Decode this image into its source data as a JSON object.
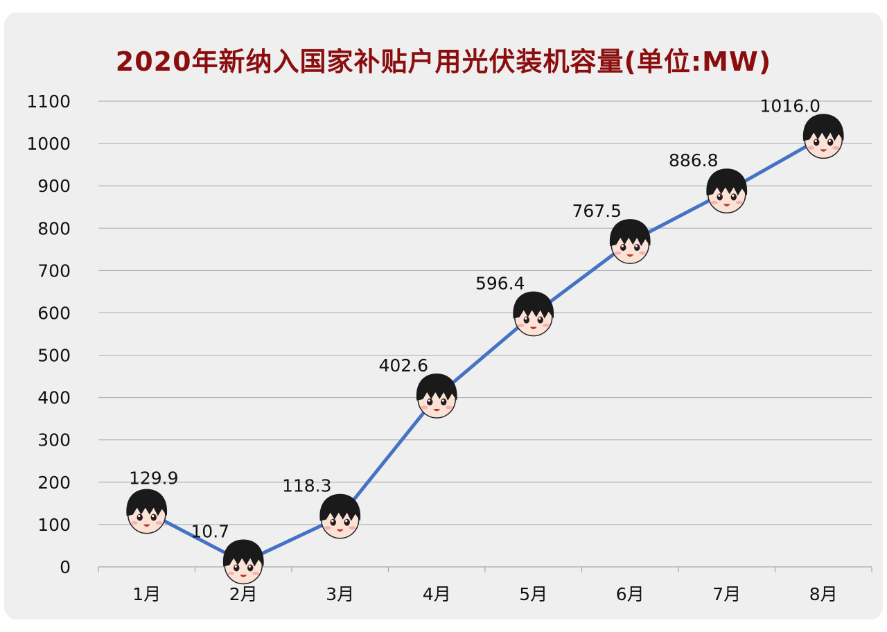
{
  "chart_data": {
    "type": "line",
    "title": "2020年新纳入国家补贴户用光伏装机容量(单位:MW)",
    "categories": [
      "1月",
      "2月",
      "3月",
      "4月",
      "5月",
      "6月",
      "7月",
      "8月"
    ],
    "values": [
      129.9,
      10.7,
      118.3,
      402.6,
      596.4,
      767.5,
      886.8,
      1016.0
    ],
    "data_labels": [
      "129.9",
      "10.7",
      "118.3",
      "402.6",
      "596.4",
      "767.5",
      "886.8",
      "1016.0"
    ],
    "ylim": [
      0,
      1100
    ],
    "yticks": [
      0,
      100,
      200,
      300,
      400,
      500,
      600,
      700,
      800,
      900,
      1000,
      1100
    ],
    "grid": true,
    "legend": "none",
    "marker": "cartoon-face-icon",
    "colors": {
      "line": "#4472c4",
      "title": "#8b0d0d",
      "grid": "#a6a6a6",
      "background": "#efefef"
    }
  }
}
